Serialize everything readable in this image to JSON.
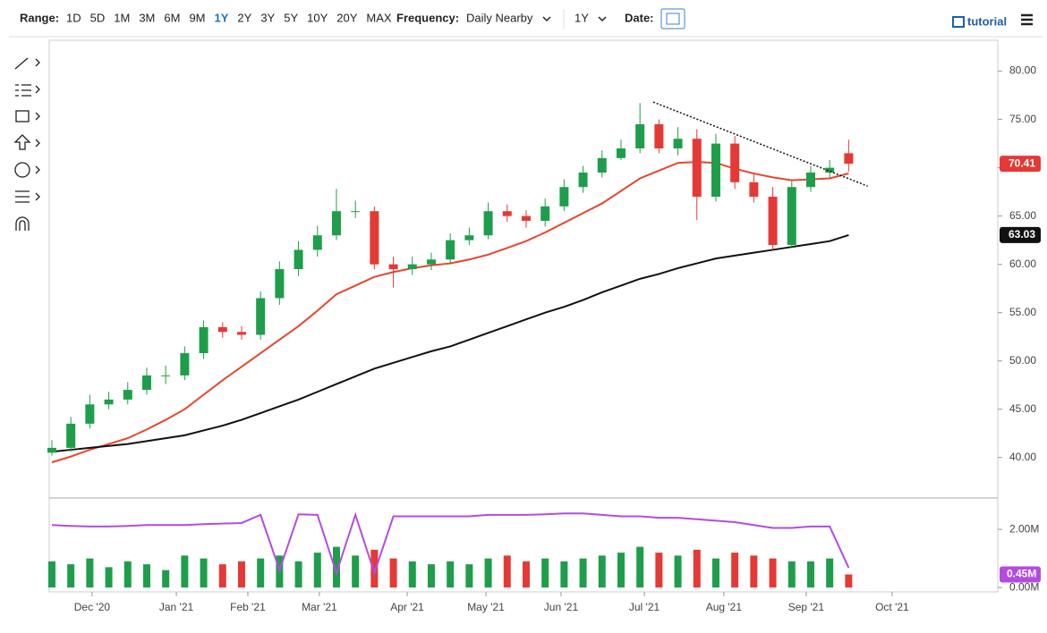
{
  "toolbar": {
    "range_label": "Range:",
    "ranges": [
      "1D",
      "5D",
      "1M",
      "3M",
      "6M",
      "9M",
      "1Y",
      "2Y",
      "3Y",
      "5Y",
      "10Y",
      "20Y",
      "MAX"
    ],
    "active_range": "1Y",
    "frequency_label": "Frequency:",
    "frequency": "Daily Nearby",
    "period": "1Y",
    "date_label": "Date:",
    "tutorial": "tutorial"
  },
  "chart_data": [
    {
      "type": "candlestick",
      "up_color": "#1e9e4a",
      "down_color": "#e53935",
      "open": [
        40.5,
        41,
        43.5,
        45.5,
        46,
        47,
        48.5,
        48.5,
        50.8,
        53.5,
        53,
        52.7,
        56.5,
        59.5,
        61.5,
        63,
        65.5,
        65.5,
        60,
        59.5,
        60,
        60.5,
        62.5,
        63,
        65.5,
        65,
        64.5,
        66,
        68,
        69.5,
        71,
        72,
        74.5,
        72,
        73,
        67,
        72.5,
        68.5,
        67,
        62,
        68,
        69.5,
        71.5
      ],
      "high": [
        41.8,
        44.2,
        46.5,
        46.8,
        47.8,
        49.3,
        49.5,
        51.5,
        54.2,
        54,
        53.6,
        57.2,
        60.3,
        62.4,
        64,
        67.8,
        66.6,
        66,
        60.8,
        60.8,
        61.2,
        63.2,
        63.8,
        66.4,
        66.2,
        65.6,
        66.8,
        68.8,
        70.2,
        71.8,
        72.9,
        76.7,
        75,
        74.2,
        74,
        73.5,
        73.3,
        69.5,
        68,
        68.6,
        70.2,
        70.8,
        72.9
      ],
      "low": [
        40.2,
        40.6,
        43,
        45,
        45.5,
        46.5,
        47.6,
        48,
        50.2,
        52.4,
        52.2,
        52.2,
        55.8,
        58.8,
        60.8,
        62.5,
        64.8,
        59.5,
        57.6,
        58.9,
        59.4,
        60,
        62,
        62.6,
        64.4,
        63.8,
        63.9,
        65.5,
        67.4,
        69,
        70.8,
        71.5,
        71.5,
        71.3,
        64.6,
        66.5,
        67.8,
        66.4,
        61.5,
        61.8,
        67.5,
        69,
        69.6
      ],
      "close": [
        41,
        43.5,
        45.5,
        46,
        47,
        48.5,
        48.5,
        50.8,
        53.5,
        53,
        52.7,
        56.5,
        59.5,
        61.5,
        63,
        65.5,
        65.5,
        60,
        59.5,
        60,
        60.5,
        62.5,
        63,
        65.5,
        65,
        64.5,
        66,
        68,
        69.5,
        71,
        72,
        74.5,
        72,
        73,
        67,
        72.5,
        68.5,
        67,
        62,
        68,
        69.5,
        70,
        70.41
      ],
      "lines": [
        {
          "color": "#e8452c",
          "values": [
            39.5,
            40.1,
            40.8,
            41.4,
            42,
            42.9,
            43.9,
            45,
            46.5,
            48,
            49.4,
            50.8,
            52.2,
            53.6,
            55.2,
            56.9,
            57.8,
            58.7,
            59.2,
            59.6,
            59.9,
            60.1,
            60.5,
            61,
            61.7,
            62.4,
            63.3,
            64.3,
            65.3,
            66.3,
            67.6,
            68.9,
            69.7,
            70.5,
            70.6,
            70.5,
            69.9,
            69.4,
            69,
            68.7,
            68.8,
            68.9,
            69.41
          ]
        },
        {
          "color": "#111111",
          "values": [
            40.6,
            40.8,
            41,
            41.2,
            41.4,
            41.7,
            42,
            42.3,
            42.8,
            43.3,
            43.9,
            44.6,
            45.3,
            46,
            46.8,
            47.6,
            48.4,
            49.2,
            49.8,
            50.4,
            51,
            51.5,
            52.2,
            52.9,
            53.6,
            54.3,
            55,
            55.6,
            56.3,
            57.1,
            57.8,
            58.5,
            59,
            59.6,
            60.1,
            60.6,
            60.9,
            61.2,
            61.5,
            61.8,
            62.1,
            62.4,
            63.03
          ]
        }
      ],
      "trendline": {
        "x": [
          31.7,
          43.0
        ],
        "values": [
          76.8,
          68.1
        ]
      },
      "xlim": [
        -0.14,
        49.86
      ],
      "xticks": [
        {
          "value": 2.12,
          "label": "Dec '20"
        },
        {
          "value": 6.56,
          "label": "Jan '21"
        },
        {
          "value": 10.33,
          "label": "Feb '21"
        },
        {
          "value": 14.1,
          "label": "Mar '21"
        },
        {
          "value": 18.73,
          "label": "Apr '21"
        },
        {
          "value": 22.88,
          "label": "May '21"
        },
        {
          "value": 26.84,
          "label": "Jun '21"
        },
        {
          "value": 31.23,
          "label": "Jul '21"
        },
        {
          "value": 35.42,
          "label": "Aug '21"
        },
        {
          "value": 39.76,
          "label": "Sep '21"
        },
        {
          "value": 44.29,
          "label": "Oct '21"
        }
      ],
      "ylim": [
        35.9,
        83.2
      ],
      "yticks": [
        {
          "value": 40,
          "label": "40.00"
        },
        {
          "value": 45,
          "label": "45.00"
        },
        {
          "value": 50,
          "label": "50.00"
        },
        {
          "value": 55,
          "label": "55.00"
        },
        {
          "value": 60,
          "label": "60.00"
        },
        {
          "value": 65,
          "label": "65.00"
        },
        {
          "value": 70,
          "label": "70.00"
        },
        {
          "value": 75,
          "label": "75.00"
        },
        {
          "value": 80,
          "label": "80.00"
        }
      ]
    },
    {
      "type": "bar",
      "values": [
        0.9,
        0.8,
        1.0,
        0.7,
        0.9,
        0.8,
        0.6,
        1.1,
        1.0,
        0.8,
        0.9,
        1.0,
        1.1,
        0.9,
        1.2,
        1.4,
        1.1,
        1.3,
        1.0,
        0.9,
        0.8,
        0.9,
        0.8,
        1.0,
        1.1,
        0.9,
        1.0,
        0.9,
        1.0,
        1.1,
        1.2,
        1.4,
        1.2,
        1.1,
        1.3,
        1.0,
        1.2,
        1.1,
        1.0,
        0.9,
        0.9,
        1.0,
        0.45
      ],
      "last_value_label": "0.45M",
      "line": {
        "color": "#b44be1",
        "values": [
          2.15,
          2.12,
          2.1,
          2.1,
          2.12,
          2.15,
          2.15,
          2.15,
          2.18,
          2.2,
          2.22,
          2.5,
          0.6,
          2.52,
          2.5,
          0.5,
          2.5,
          0.5,
          2.45,
          2.45,
          2.45,
          2.45,
          2.45,
          2.5,
          2.5,
          2.5,
          2.52,
          2.55,
          2.55,
          2.5,
          2.45,
          2.45,
          2.4,
          2.4,
          2.35,
          2.3,
          2.25,
          2.15,
          2.05,
          2.05,
          2.1,
          2.1,
          0.68
        ]
      },
      "ylim": [
        -0.15,
        3.05
      ],
      "yticks": [
        {
          "value": 0,
          "label": "0.00M"
        },
        {
          "value": 2,
          "label": "2.00M"
        }
      ]
    }
  ]
}
